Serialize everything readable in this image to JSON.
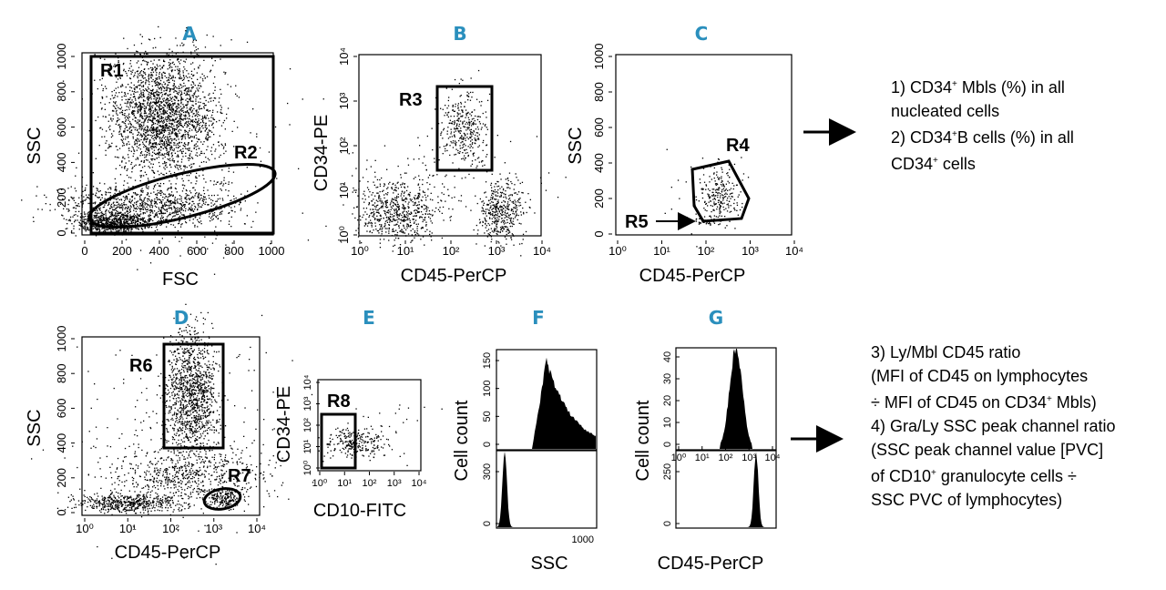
{
  "chart_data": [
    {
      "id": "A",
      "type": "scatter",
      "title": "A",
      "xlabel": "FSC",
      "ylabel": "SSC",
      "xlim": [
        0,
        1000
      ],
      "ylim": [
        0,
        1000
      ],
      "xticks": [
        "0",
        "200",
        "400",
        "600",
        "800",
        "1000"
      ],
      "yticks": [
        "0",
        "200",
        "400",
        "600",
        "800",
        "1000"
      ],
      "gates": [
        "R1",
        "R2"
      ]
    },
    {
      "id": "B",
      "type": "scatter",
      "title": "B",
      "xlabel": "CD45-PerCP",
      "ylabel": "CD34-PE",
      "xscale": "log",
      "xlim": [
        1,
        10000
      ],
      "ylim": [
        1,
        10000
      ],
      "xticks": [
        "10⁰",
        "10¹",
        "10²",
        "10³",
        "10⁴"
      ],
      "yticks": [
        "10⁰",
        "10¹",
        "10²",
        "10³",
        "10⁴"
      ],
      "gates": [
        "R3"
      ]
    },
    {
      "id": "C",
      "type": "scatter",
      "title": "C",
      "xlabel": "CD45-PerCP",
      "ylabel": "SSC",
      "xlim": [
        1,
        10000
      ],
      "ylim": [
        0,
        1000
      ],
      "xticks": [
        "10⁰",
        "10¹",
        "10²",
        "10³",
        "10⁴"
      ],
      "yticks": [
        "0",
        "200",
        "400",
        "600",
        "800",
        "1000"
      ],
      "gates": [
        "R4",
        "R5"
      ]
    },
    {
      "id": "D",
      "type": "scatter",
      "title": "D",
      "xlabel": "CD45-PerCP",
      "ylabel": "SSC",
      "xlim": [
        1,
        10000
      ],
      "ylim": [
        0,
        1000
      ],
      "xticks": [
        "10⁰",
        "10¹",
        "10²",
        "10³",
        "10⁴"
      ],
      "yticks": [
        "0",
        "200",
        "400",
        "600",
        "800",
        "1000"
      ],
      "gates": [
        "R6",
        "R7"
      ]
    },
    {
      "id": "E",
      "type": "scatter",
      "title": "E",
      "xlabel": "CD10-FITC",
      "ylabel": "CD34-PE",
      "xlim": [
        1,
        10000
      ],
      "ylim": [
        1,
        10000
      ],
      "xticks": [
        "10⁰",
        "10¹",
        "10²",
        "10³",
        "10⁴"
      ],
      "yticks": [
        "10⁰",
        "10¹",
        "10²",
        "10³",
        "10⁴"
      ],
      "gates": [
        "R8"
      ]
    },
    {
      "id": "F",
      "type": "histogram",
      "title": "F",
      "xlabel": "SSC",
      "ylabel": "Cell count",
      "top": {
        "xlim": [
          0,
          1000
        ],
        "xticks": [
          "1000"
        ],
        "ymax": 150,
        "yticks": [
          "0",
          "50",
          "100",
          "150"
        ]
      },
      "bottom": {
        "xlim": [
          0,
          1000
        ],
        "xticks": [
          "1000"
        ],
        "ymax": 300,
        "yticks": [
          "0",
          "300"
        ]
      }
    },
    {
      "id": "G",
      "type": "histogram",
      "title": "G",
      "xlabel": "CD45-PerCP",
      "ylabel": "Cell count",
      "top": {
        "xlim": [
          1,
          10000
        ],
        "xticks": [
          "10⁰",
          "10¹",
          "10²",
          "10³",
          "10⁴"
        ],
        "ymax": 40,
        "yticks": [
          "0",
          "10",
          "20",
          "30",
          "40"
        ]
      },
      "bottom": {
        "xlim": [
          1,
          10000
        ],
        "xticks": [
          "10⁰",
          "10¹",
          "10²",
          "10³",
          "10⁴"
        ],
        "ymax": 250,
        "yticks": [
          "0",
          "250"
        ]
      }
    }
  ],
  "notes_top": {
    "l1_a": "1) CD34",
    "l1_sup": "+",
    "l1_b": " Mbls (%) in all",
    "l2": "nucleated cells",
    "l3_a": "2) CD34",
    "l3_sup": "+",
    "l3_b": "B cells (%) in all",
    "l4_a": "CD34",
    "l4_sup": "+",
    "l4_b": " cells"
  },
  "notes_bottom": {
    "l1": "3) Ly/Mbl CD45 ratio",
    "l2": "(MFI of CD45 on lymphocytes",
    "l3_a": "÷ MFI of CD45 on CD34",
    "l3_sup": "+",
    "l3_b": " Mbls)",
    "l4": "4) Gra/Ly SSC peak channel ratio",
    "l5": "(SSC peak channel value [PVC]",
    "l6_a": "of CD10",
    "l6_sup": "+",
    "l6_b": " granulocyte cells ÷",
    "l7": "SSC PVC of lymphocytes)"
  }
}
